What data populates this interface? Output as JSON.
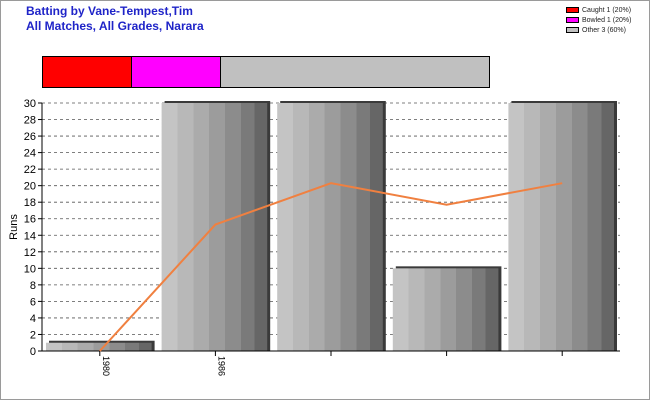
{
  "header": {
    "title_line1": "Batting by Vane-Tempest,Tim",
    "title_line2": "All Matches, All Grades, Narara"
  },
  "legend": [
    {
      "label": "Caught 1 (20%)",
      "color": "#ff0000"
    },
    {
      "label": "Bowled 1 (20%)",
      "color": "#ff00ff"
    },
    {
      "label": "Other 3 (60%)",
      "color": "#c0c0c0"
    }
  ],
  "dismissal_bar": [
    {
      "name": "Caught",
      "fraction": 0.2,
      "color": "#ff0000"
    },
    {
      "name": "Bowled",
      "fraction": 0.2,
      "color": "#ff00ff"
    },
    {
      "name": "Other",
      "fraction": 0.6,
      "color": "#c0c0c0"
    }
  ],
  "chart_data": {
    "type": "bar",
    "title": "Batting by Vane-Tempest,Tim",
    "subtitle": "All Matches, All Grades, Narara",
    "ylabel": "Runs",
    "xlabel": "",
    "ylim": [
      0,
      30
    ],
    "yticks": [
      0,
      2,
      4,
      6,
      8,
      10,
      12,
      14,
      16,
      18,
      20,
      22,
      24,
      26,
      28,
      30
    ],
    "grid": true,
    "categories": [
      "1980",
      "1986",
      "",
      "",
      ""
    ],
    "values": [
      1,
      30,
      30,
      10,
      30
    ],
    "line_series": {
      "values": [
        0,
        15.3,
        20.3,
        17.7,
        20.3
      ],
      "color": "#f08040"
    }
  }
}
